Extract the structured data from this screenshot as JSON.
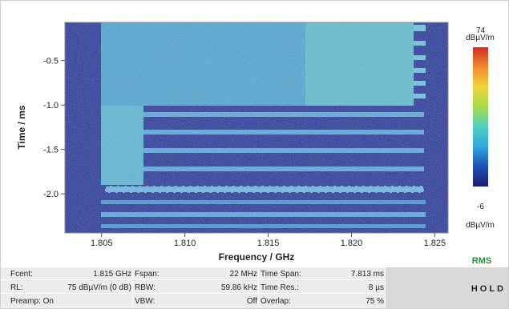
{
  "chart_data": {
    "type": "spectrogram",
    "xlabel": "Frequency / GHz",
    "ylabel": "Time / ms",
    "xlim": [
      1.8028,
      1.8258
    ],
    "xticks": [
      1.805,
      {
        "value": 1.81,
        "label": "1.810"
      },
      1.815,
      {
        "value": 1.82,
        "label": "1.820"
      },
      1.825
    ],
    "ylim": [
      -2.44,
      -0.07
    ],
    "yticks": [
      -0.5,
      {
        "value": -1.0,
        "label": "-1.0"
      },
      -1.5,
      {
        "value": -2.0,
        "label": "-2.0"
      }
    ],
    "clim": [
      -6,
      74
    ],
    "cticks": [
      74,
      -6
    ],
    "colorbar_unit": "dBµV/m",
    "colors": [
      "#1b1f6e",
      "#1f4fb8",
      "#2fa8e0",
      "#4fd0c0",
      "#a6dc4a",
      "#f2d43a",
      "#f08a2a",
      "#d42a2a"
    ],
    "detector": "RMS"
  },
  "status": {
    "fcent_label": "Fcent:",
    "fcent": "1.815 GHz",
    "rl_label": "RL:",
    "rl": "75 dBµV/m (0 dB)",
    "preamp": "Preamp: On",
    "fspan_label": "Fspan:",
    "fspan": "22 MHz",
    "rbw_label": "RBW:",
    "rbw": "59.86 kHz",
    "vbw_label": "VBW:",
    "vbw": "Off",
    "timespan_label": "Time Span:",
    "timespan": "7.813 ms",
    "timeres_label": "Time Res.:",
    "timeres": "8 µs",
    "overlap_label": "Overlap:",
    "overlap": "75 %",
    "mode": "HOLD"
  }
}
